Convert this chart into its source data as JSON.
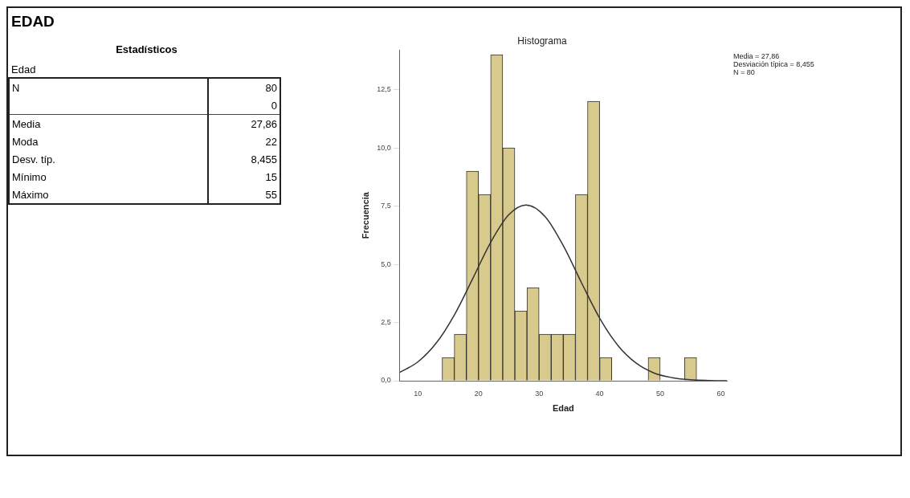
{
  "chart_data": [
    {
      "type": "other",
      "title": "EDAD",
      "subtitle": "Estadísticos",
      "ylabel": "Edad",
      "categories": [
        "N",
        null,
        "Media",
        "Moda",
        "Desv. típ.",
        "Mínimo",
        "Máximo"
      ],
      "annotations": [
        "80",
        "0",
        "27,86",
        "22",
        "8,455",
        "15",
        "55"
      ]
    },
    {
      "type": "histogram",
      "title": "Histograma",
      "xlabel": "Edad",
      "ylabel": "Frecuencia",
      "color": "#d8c98c",
      "bins": [
        14,
        16,
        18,
        20,
        22,
        24,
        26,
        28,
        30,
        32,
        34,
        36,
        38,
        40,
        42,
        44,
        46,
        48,
        50,
        52,
        54,
        56
      ],
      "values": [
        1,
        2,
        9,
        8,
        14,
        10,
        3,
        4,
        2,
        2,
        2,
        8,
        12,
        1,
        0,
        0,
        0,
        1,
        0,
        0,
        1
      ],
      "series": [
        {
          "type": "line",
          "color": "#333333",
          "x": [
            7,
            10,
            13,
            16,
            19,
            22,
            25,
            27.86,
            31,
            34,
            37,
            40,
            43,
            46,
            49,
            52,
            55,
            58,
            61
          ],
          "values": [
            0.36,
            0.81,
            1.61,
            2.82,
            4.36,
            5.94,
            7.13,
            7.55,
            7.05,
            5.8,
            4.21,
            2.69,
            1.52,
            0.76,
            0.33,
            0.13,
            0.04,
            0.01,
            0
          ]
        }
      ],
      "xlim": [
        7,
        61
      ],
      "xticks": [
        10,
        20,
        30,
        40,
        50,
        60
      ],
      "ylim": [
        0,
        14.2
      ],
      "yticks": [
        {
          "value": 0,
          "label": "0,0"
        },
        {
          "value": 2.5,
          "label": "2,5"
        },
        {
          "value": 5,
          "label": "5,0"
        },
        {
          "value": 7.5,
          "label": "7,5"
        },
        {
          "value": 10,
          "label": "10,0"
        },
        {
          "value": 12.5,
          "label": "12,5"
        }
      ],
      "grid": false,
      "legend": false,
      "annotations": [
        "Media = 27,86",
        "Desviación típica = 8,455",
        "N = 80"
      ]
    }
  ]
}
